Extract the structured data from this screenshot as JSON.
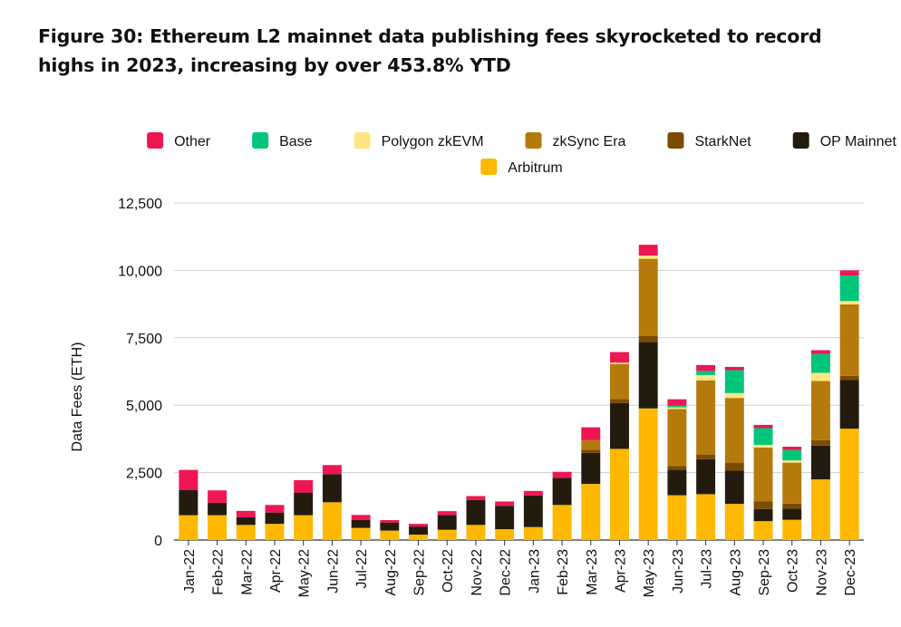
{
  "title": "Figure 30: Ethereum L2 mainnet data publishing fees skyrocketed to record highs in 2023, increasing by over 453.8% YTD",
  "chart_data": {
    "type": "bar",
    "stacked": true,
    "ylabel": "Data Fees (ETH)",
    "xlabel": "",
    "ylim": [
      0,
      12500
    ],
    "yticks": [
      0,
      2500,
      5000,
      7500,
      10000,
      12500
    ],
    "ytick_labels": [
      "0",
      "2,500",
      "5,000",
      "7,500",
      "10,000",
      "12,500"
    ],
    "grid": true,
    "legend_position": "top",
    "categories": [
      "Jan-22",
      "Feb-22",
      "Mar-22",
      "Apr-22",
      "May-22",
      "Jun-22",
      "Jul-22",
      "Aug-22",
      "Sep-22",
      "Oct-22",
      "Nov-22",
      "Dec-22",
      "Jan-23",
      "Feb-23",
      "Mar-23",
      "Apr-23",
      "May-23",
      "Jun-23",
      "Jul-23",
      "Aug-23",
      "Sep-23",
      "Oct-23",
      "Nov-23",
      "Dec-23"
    ],
    "series": [
      {
        "name": "Arbitrum",
        "color": "#FFB800",
        "values": [
          920,
          920,
          560,
          600,
          920,
          1400,
          450,
          350,
          200,
          380,
          560,
          400,
          480,
          1300,
          2080,
          3380,
          4880,
          1660,
          1700,
          1340,
          700,
          750,
          2250,
          4130
        ]
      },
      {
        "name": "OP Mainnet",
        "color": "#231C0E",
        "values": [
          940,
          460,
          290,
          420,
          840,
          1040,
          300,
          300,
          300,
          550,
          920,
          870,
          1170,
          1000,
          1150,
          1700,
          2460,
          950,
          1300,
          1230,
          450,
          420,
          1250,
          1800
        ]
      },
      {
        "name": "StarkNet",
        "color": "#7A4B00",
        "values": [
          0,
          0,
          0,
          0,
          0,
          0,
          0,
          0,
          0,
          0,
          0,
          0,
          0,
          0,
          120,
          150,
          220,
          130,
          170,
          300,
          280,
          180,
          200,
          160
        ]
      },
      {
        "name": "zkSync Era",
        "color": "#B57A0C",
        "values": [
          0,
          0,
          0,
          0,
          0,
          0,
          0,
          0,
          0,
          0,
          0,
          0,
          0,
          0,
          350,
          1300,
          2870,
          2120,
          2750,
          2400,
          2000,
          1520,
          2200,
          2650
        ]
      },
      {
        "name": "Polygon zkEVM",
        "color": "#FFE682",
        "values": [
          0,
          0,
          0,
          0,
          0,
          0,
          0,
          0,
          0,
          0,
          0,
          0,
          0,
          0,
          0,
          50,
          120,
          60,
          200,
          180,
          100,
          80,
          300,
          120
        ]
      },
      {
        "name": "Base",
        "color": "#00C57A",
        "values": [
          0,
          0,
          0,
          0,
          0,
          0,
          0,
          0,
          0,
          0,
          0,
          0,
          0,
          0,
          0,
          0,
          0,
          60,
          150,
          850,
          620,
          390,
          700,
          950
        ]
      },
      {
        "name": "Other",
        "color": "#EE1653",
        "values": [
          740,
          460,
          230,
          280,
          460,
          340,
          180,
          90,
          100,
          140,
          150,
          160,
          170,
          230,
          480,
          390,
          400,
          240,
          220,
          120,
          120,
          120,
          140,
          190
        ]
      }
    ],
    "legend_order": [
      "Other",
      "Base",
      "Polygon zkEVM",
      "zkSync Era",
      "StarkNet",
      "OP Mainnet",
      "Arbitrum"
    ]
  }
}
